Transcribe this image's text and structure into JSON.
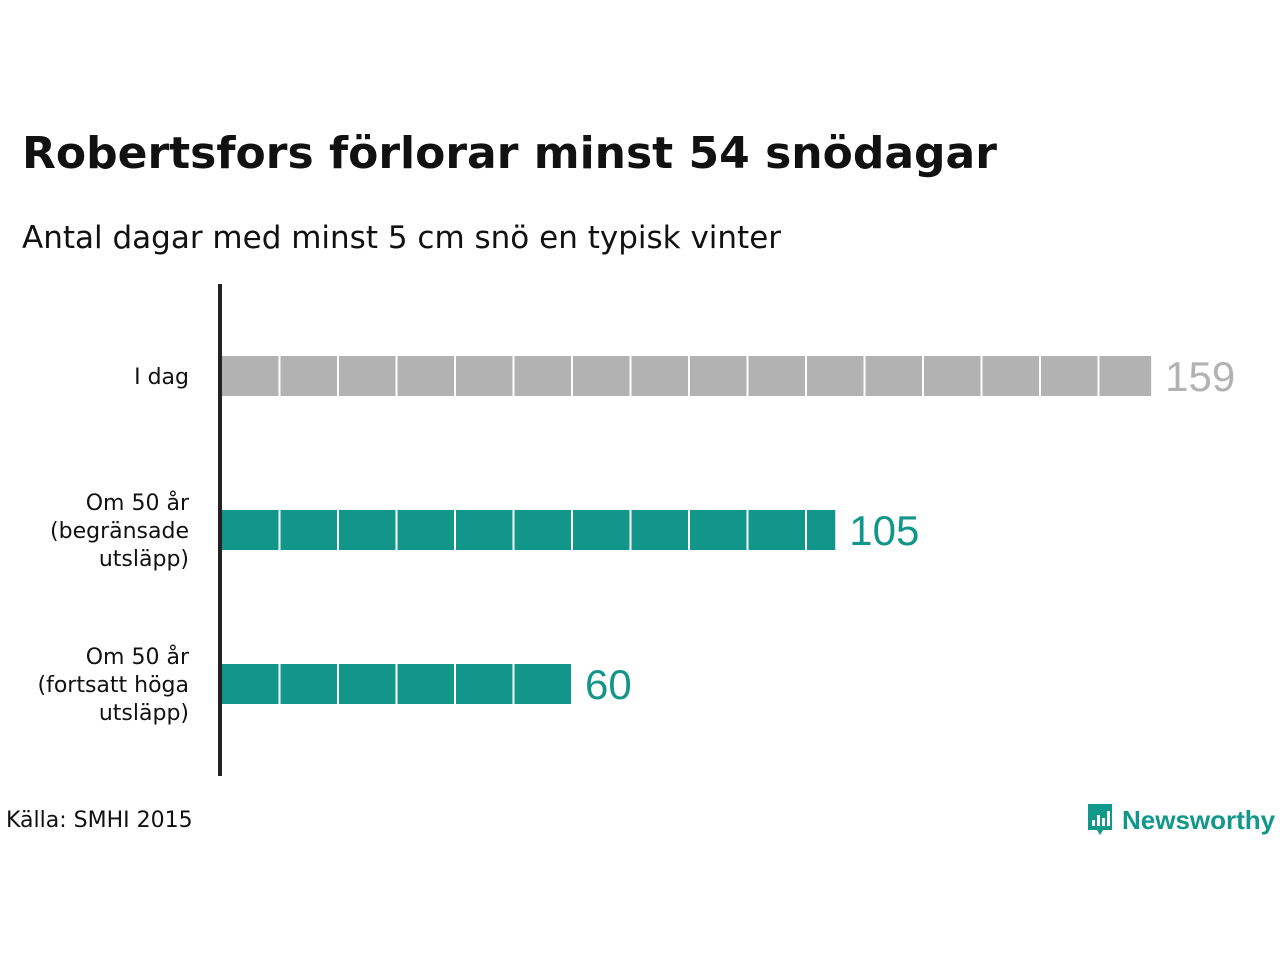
{
  "title": "Robertsfors förlorar minst 54 snödagar",
  "subtitle": "Antal dagar med minst 5 cm snö en typisk vinter",
  "source": "Källa: SMHI 2015",
  "brand": {
    "name": "Newsworthy",
    "icon": "newsworthy-logo-icon",
    "color": "#12988a"
  },
  "chart_data": {
    "type": "bar",
    "orientation": "horizontal",
    "unit_per_block": 10,
    "categories": [
      [
        "I dag"
      ],
      [
        "Om 50 år",
        "(begränsade",
        "utsläpp)"
      ],
      [
        "Om 50 år",
        "(fortsatt höga",
        "utsläpp)"
      ]
    ],
    "values": [
      159,
      105,
      60
    ],
    "value_labels": [
      "159",
      "105",
      "60"
    ],
    "colors": [
      "#b2b2b2",
      "#12968a",
      "#12968a"
    ],
    "xlim": [
      0,
      160
    ],
    "grid": false,
    "legend": "none"
  }
}
